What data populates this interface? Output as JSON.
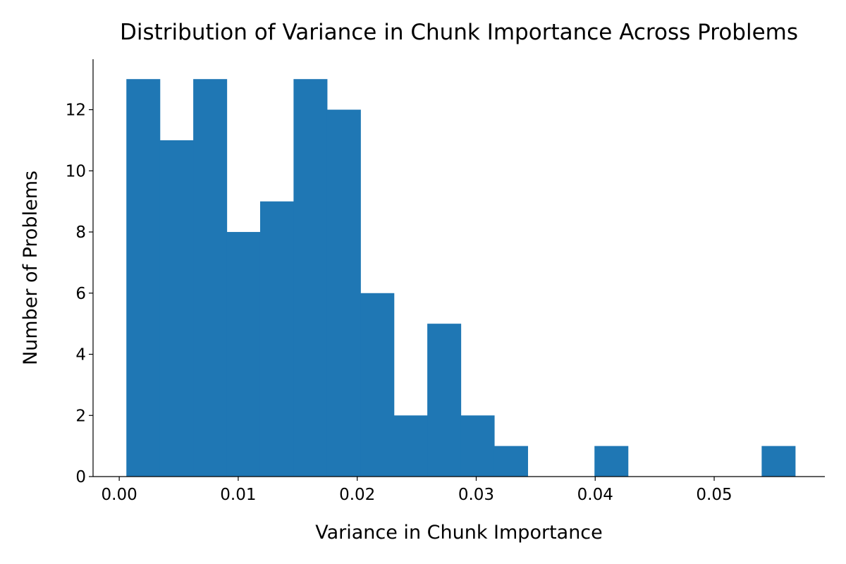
{
  "chart_data": {
    "type": "bar",
    "title": "Distribution of Variance in Chunk Importance Across Problems",
    "xlabel": "Variance in Chunk Importance",
    "ylabel": "Number of Problems",
    "bar_color": "#1f77b4",
    "xlim": [
      -0.0022,
      0.0593
    ],
    "ylim": [
      0,
      13.65
    ],
    "xticks": [
      0.0,
      0.01,
      0.02,
      0.03,
      0.04,
      0.05
    ],
    "xtick_labels": [
      "0.00",
      "0.01",
      "0.02",
      "0.03",
      "0.04",
      "0.05"
    ],
    "yticks": [
      0,
      2,
      4,
      6,
      8,
      10,
      12
    ],
    "ytick_labels": [
      "0",
      "2",
      "4",
      "6",
      "8",
      "10",
      "12"
    ],
    "bin_edges": [
      0.0006,
      0.00341,
      0.00622,
      0.00903,
      0.01184,
      0.01465,
      0.01746,
      0.02027,
      0.02308,
      0.02589,
      0.0287,
      0.03151,
      0.03432,
      0.03713,
      0.03994,
      0.04275,
      0.04556,
      0.04837,
      0.05118,
      0.05399,
      0.0568
    ],
    "values": [
      13,
      11,
      13,
      8,
      9,
      13,
      12,
      6,
      2,
      5,
      2,
      1,
      0,
      0,
      1,
      0,
      0,
      0,
      0,
      1
    ],
    "grid": false,
    "legend": "none"
  }
}
